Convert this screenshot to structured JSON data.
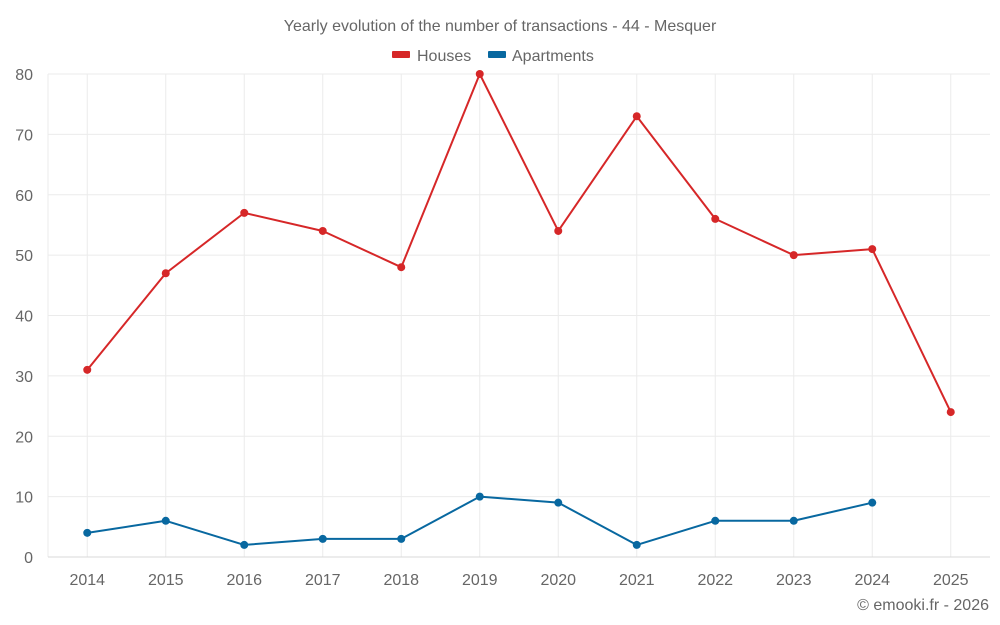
{
  "chart_data": {
    "type": "line",
    "title": "Yearly evolution of the number of transactions - 44 - Mesquer",
    "xlabel": "",
    "ylabel": "",
    "categories": [
      "2014",
      "2015",
      "2016",
      "2017",
      "2018",
      "2019",
      "2020",
      "2021",
      "2022",
      "2023",
      "2024",
      "2025"
    ],
    "series": [
      {
        "name": "Houses",
        "color": "#d62728",
        "values": [
          31,
          47,
          57,
          54,
          48,
          80,
          54,
          73,
          56,
          50,
          51,
          24
        ]
      },
      {
        "name": "Apartments",
        "color": "#0868a0",
        "values": [
          4,
          6,
          2,
          3,
          3,
          10,
          9,
          2,
          6,
          6,
          9,
          null
        ]
      }
    ],
    "ylim": [
      0,
      80
    ],
    "yticks": [
      0,
      10,
      20,
      30,
      40,
      50,
      60,
      70,
      80
    ],
    "grid": true,
    "legend_position": "top-center",
    "credit": "© emooki.fr - 2026"
  }
}
